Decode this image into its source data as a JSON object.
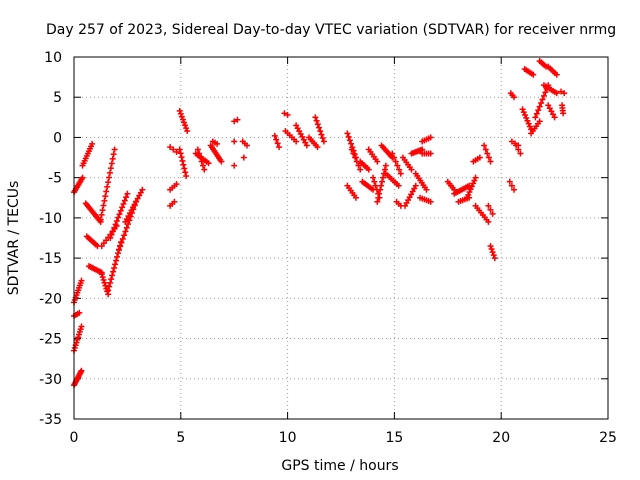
{
  "chart_data": {
    "type": "scatter",
    "title": "Day 257 of 2023, Sidereal Day-to-day VTEC variation (SDTVAR) for receiver nrmg",
    "xlabel": "GPS time / hours",
    "ylabel": "SDTVAR / TECUs",
    "xlim": [
      0,
      25
    ],
    "ylim": [
      -35,
      10
    ],
    "xticks": [
      0,
      5,
      10,
      15,
      20,
      25
    ],
    "yticks": [
      -35,
      -30,
      -25,
      -20,
      -15,
      -10,
      -5,
      0,
      5,
      10
    ],
    "grid": true,
    "marker": "+",
    "color": "#ff0000",
    "series": [
      {
        "name": "SDTVAR",
        "segments": [
          {
            "x0": 0.0,
            "y0": -30.8,
            "x1": 0.35,
            "y1": -29.0,
            "n": 12
          },
          {
            "x0": 0.0,
            "y0": -26.5,
            "x1": 0.35,
            "y1": -23.5,
            "n": 10
          },
          {
            "x0": 0.0,
            "y0": -20.5,
            "x1": 0.35,
            "y1": -17.8,
            "n": 10
          },
          {
            "x0": 0.0,
            "y0": -22.2,
            "x1": 0.25,
            "y1": -21.8,
            "n": 4
          },
          {
            "x0": 0.0,
            "y0": -6.8,
            "x1": 0.4,
            "y1": -5.0,
            "n": 10
          },
          {
            "x0": 0.4,
            "y0": -3.5,
            "x1": 0.85,
            "y1": -0.8,
            "n": 10
          },
          {
            "x0": 0.55,
            "y0": -8.2,
            "x1": 1.25,
            "y1": -10.5,
            "n": 14
          },
          {
            "x0": 0.6,
            "y0": -12.3,
            "x1": 1.1,
            "y1": -13.5,
            "n": 8
          },
          {
            "x0": 0.7,
            "y0": -16.0,
            "x1": 1.3,
            "y1": -16.8,
            "n": 10
          },
          {
            "x0": 1.3,
            "y0": -17.0,
            "x1": 1.6,
            "y1": -19.5,
            "n": 8
          },
          {
            "x0": 1.6,
            "y0": -19.0,
            "x1": 2.2,
            "y1": -13.0,
            "n": 14
          },
          {
            "x0": 1.25,
            "y0": -10.2,
            "x1": 1.9,
            "y1": -1.5,
            "n": 16
          },
          {
            "x0": 1.7,
            "y0": -12.5,
            "x1": 2.5,
            "y1": -7.0,
            "n": 14
          },
          {
            "x0": 2.1,
            "y0": -14.0,
            "x1": 2.9,
            "y1": -8.0,
            "n": 14
          },
          {
            "x0": 2.4,
            "y0": -10.5,
            "x1": 3.2,
            "y1": -6.5,
            "n": 12
          },
          {
            "x0": 1.3,
            "y0": -13.5,
            "x1": 2.0,
            "y1": -11.0,
            "n": 8
          },
          {
            "x0": 4.5,
            "y0": -8.5,
            "x1": 4.7,
            "y1": -8.0,
            "n": 3
          },
          {
            "x0": 4.5,
            "y0": -6.5,
            "x1": 4.8,
            "y1": -5.8,
            "n": 4
          },
          {
            "x0": 4.5,
            "y0": -1.2,
            "x1": 4.8,
            "y1": -1.8,
            "n": 3
          },
          {
            "x0": 4.95,
            "y0": 3.3,
            "x1": 5.3,
            "y1": 0.8,
            "n": 8
          },
          {
            "x0": 4.95,
            "y0": -1.5,
            "x1": 5.25,
            "y1": -4.8,
            "n": 8
          },
          {
            "x0": 5.7,
            "y0": -2.0,
            "x1": 6.3,
            "y1": -3.2,
            "n": 8
          },
          {
            "x0": 5.8,
            "y0": -1.5,
            "x1": 6.1,
            "y1": -4.0,
            "n": 6
          },
          {
            "x0": 6.4,
            "y0": -1.0,
            "x1": 6.9,
            "y1": -3.0,
            "n": 10
          },
          {
            "x0": 6.5,
            "y0": -0.5,
            "x1": 6.7,
            "y1": -0.8,
            "n": 3
          },
          {
            "x0": 7.5,
            "y0": 2.0,
            "x1": 7.65,
            "y1": 2.2,
            "n": 2
          },
          {
            "x0": 7.5,
            "y0": -3.5,
            "x1": 7.6,
            "y1": -3.5,
            "n": 1
          },
          {
            "x0": 7.5,
            "y0": -0.5,
            "x1": 7.6,
            "y1": -0.5,
            "n": 1
          },
          {
            "x0": 7.9,
            "y0": -0.5,
            "x1": 8.1,
            "y1": -1.0,
            "n": 3
          },
          {
            "x0": 7.95,
            "y0": -2.5,
            "x1": 8.05,
            "y1": -2.5,
            "n": 1
          },
          {
            "x0": 9.4,
            "y0": 0.2,
            "x1": 9.6,
            "y1": -1.2,
            "n": 4
          },
          {
            "x0": 9.85,
            "y0": 3.0,
            "x1": 10.0,
            "y1": 2.8,
            "n": 2
          },
          {
            "x0": 9.9,
            "y0": 0.8,
            "x1": 10.4,
            "y1": -0.5,
            "n": 6
          },
          {
            "x0": 10.4,
            "y0": 1.5,
            "x1": 10.9,
            "y1": -1.0,
            "n": 8
          },
          {
            "x0": 11.0,
            "y0": 0.0,
            "x1": 11.4,
            "y1": -1.2,
            "n": 6
          },
          {
            "x0": 11.3,
            "y0": 2.5,
            "x1": 11.7,
            "y1": -0.5,
            "n": 8
          },
          {
            "x0": 12.8,
            "y0": 0.5,
            "x1": 13.2,
            "y1": -2.5,
            "n": 8
          },
          {
            "x0": 12.8,
            "y0": -6.0,
            "x1": 13.2,
            "y1": -7.5,
            "n": 6
          },
          {
            "x0": 13.0,
            "y0": -1.5,
            "x1": 13.4,
            "y1": -4.0,
            "n": 6
          },
          {
            "x0": 13.4,
            "y0": -3.0,
            "x1": 13.8,
            "y1": -4.0,
            "n": 6
          },
          {
            "x0": 13.5,
            "y0": -5.5,
            "x1": 14.0,
            "y1": -6.5,
            "n": 8
          },
          {
            "x0": 13.8,
            "y0": -1.5,
            "x1": 14.2,
            "y1": -3.0,
            "n": 6
          },
          {
            "x0": 14.0,
            "y0": -5.0,
            "x1": 14.3,
            "y1": -7.5,
            "n": 6
          },
          {
            "x0": 14.2,
            "y0": -8.0,
            "x1": 14.6,
            "y1": -3.5,
            "n": 10
          },
          {
            "x0": 14.4,
            "y0": -1.0,
            "x1": 14.9,
            "y1": -2.5,
            "n": 8
          },
          {
            "x0": 14.6,
            "y0": -4.5,
            "x1": 15.2,
            "y1": -6.0,
            "n": 8
          },
          {
            "x0": 14.9,
            "y0": -2.0,
            "x1": 15.3,
            "y1": -4.5,
            "n": 6
          },
          {
            "x0": 15.1,
            "y0": -8.0,
            "x1": 15.3,
            "y1": -8.5,
            "n": 3
          },
          {
            "x0": 15.4,
            "y0": -2.5,
            "x1": 15.8,
            "y1": -4.0,
            "n": 6
          },
          {
            "x0": 15.5,
            "y0": -8.5,
            "x1": 16.0,
            "y1": -6.0,
            "n": 8
          },
          {
            "x0": 15.8,
            "y0": -2.0,
            "x1": 16.3,
            "y1": -1.5,
            "n": 8
          },
          {
            "x0": 16.0,
            "y0": -4.5,
            "x1": 16.5,
            "y1": -6.5,
            "n": 8
          },
          {
            "x0": 16.2,
            "y0": -7.5,
            "x1": 16.7,
            "y1": -8.0,
            "n": 6
          },
          {
            "x0": 16.3,
            "y0": -2.0,
            "x1": 16.7,
            "y1": -2.0,
            "n": 5
          },
          {
            "x0": 16.3,
            "y0": -0.5,
            "x1": 16.7,
            "y1": 0.0,
            "n": 5
          },
          {
            "x0": 17.5,
            "y0": -5.5,
            "x1": 17.8,
            "y1": -6.5,
            "n": 5
          },
          {
            "x0": 17.8,
            "y0": -7.0,
            "x1": 18.5,
            "y1": -6.0,
            "n": 10
          },
          {
            "x0": 18.0,
            "y0": -8.0,
            "x1": 18.5,
            "y1": -7.5,
            "n": 6
          },
          {
            "x0": 18.4,
            "y0": -7.5,
            "x1": 18.8,
            "y1": -5.0,
            "n": 8
          },
          {
            "x0": 18.7,
            "y0": -3.0,
            "x1": 19.0,
            "y1": -2.5,
            "n": 4
          },
          {
            "x0": 18.8,
            "y0": -8.5,
            "x1": 19.4,
            "y1": -10.5,
            "n": 8
          },
          {
            "x0": 19.2,
            "y0": -1.0,
            "x1": 19.5,
            "y1": -3.0,
            "n": 5
          },
          {
            "x0": 19.4,
            "y0": -8.5,
            "x1": 19.6,
            "y1": -9.5,
            "n": 3
          },
          {
            "x0": 19.5,
            "y0": -13.5,
            "x1": 19.7,
            "y1": -15.0,
            "n": 5
          },
          {
            "x0": 20.4,
            "y0": -5.5,
            "x1": 20.6,
            "y1": -6.5,
            "n": 3
          },
          {
            "x0": 20.5,
            "y0": -0.5,
            "x1": 20.8,
            "y1": -1.0,
            "n": 3
          },
          {
            "x0": 20.7,
            "y0": -1.0,
            "x1": 20.9,
            "y1": -2.0,
            "n": 3
          },
          {
            "x0": 20.45,
            "y0": 5.5,
            "x1": 20.6,
            "y1": 5.0,
            "n": 3
          },
          {
            "x0": 21.0,
            "y0": 3.5,
            "x1": 21.4,
            "y1": 1.0,
            "n": 8
          },
          {
            "x0": 21.1,
            "y0": 8.5,
            "x1": 21.5,
            "y1": 7.8,
            "n": 6
          },
          {
            "x0": 21.4,
            "y0": 0.5,
            "x1": 21.8,
            "y1": 2.0,
            "n": 6
          },
          {
            "x0": 21.6,
            "y0": 2.5,
            "x1": 22.2,
            "y1": 6.5,
            "n": 10
          },
          {
            "x0": 21.8,
            "y0": 9.5,
            "x1": 22.1,
            "y1": 8.8,
            "n": 5
          },
          {
            "x0": 22.0,
            "y0": 6.5,
            "x1": 22.6,
            "y1": 5.5,
            "n": 8
          },
          {
            "x0": 22.2,
            "y0": 8.8,
            "x1": 22.6,
            "y1": 7.8,
            "n": 6
          },
          {
            "x0": 22.2,
            "y0": 4.0,
            "x1": 22.5,
            "y1": 2.5,
            "n": 5
          },
          {
            "x0": 22.8,
            "y0": 5.7,
            "x1": 22.95,
            "y1": 5.5,
            "n": 2
          },
          {
            "x0": 22.85,
            "y0": 4.0,
            "x1": 22.9,
            "y1": 3.0,
            "n": 4
          }
        ]
      }
    ]
  }
}
